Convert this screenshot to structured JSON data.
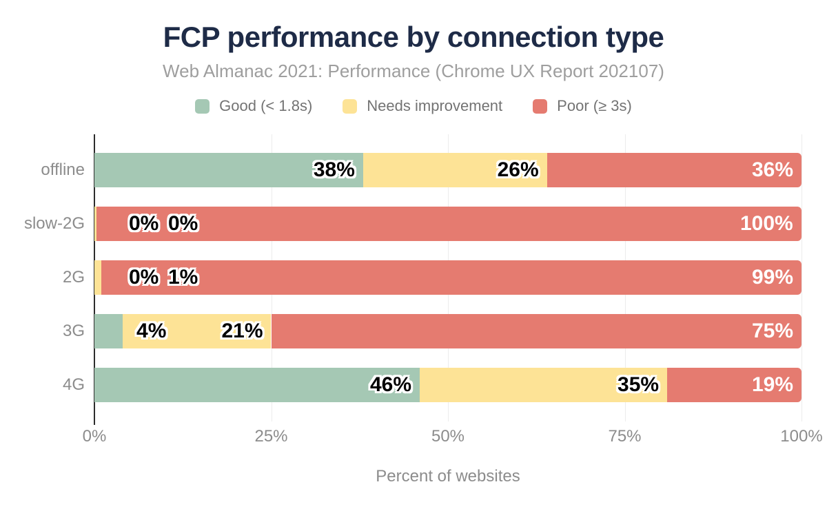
{
  "title": "FCP performance by connection type",
  "subtitle": "Web Almanac 2021: Performance (Chrome UX Report 202107)",
  "colors": {
    "good": "#a5c8b4",
    "needs_improvement": "#fde396",
    "poor": "#e57b70",
    "title_text": "#1e2b47",
    "subtitle_text": "#9e9e9e",
    "legend_text": "#737373",
    "axis_text": "#8c8c8c",
    "gridline": "#ececec",
    "axis_line": "#2d2d2d",
    "label_dark": "#000000",
    "label_light": "#ffffff"
  },
  "legend": [
    {
      "key": "good",
      "label": "Good (< 1.8s)"
    },
    {
      "key": "needs_improvement",
      "label": "Needs improvement"
    },
    {
      "key": "poor",
      "label": "Poor (≥ 3s)"
    }
  ],
  "chart_data": {
    "type": "bar",
    "orientation": "horizontal",
    "stacked": true,
    "title": "FCP performance by connection type",
    "subtitle": "Web Almanac 2021: Performance (Chrome UX Report 202107)",
    "categories": [
      "offline",
      "slow-2G",
      "2G",
      "3G",
      "4G"
    ],
    "series": [
      {
        "name": "Good (< 1.8s)",
        "key": "good",
        "values": [
          38,
          0,
          0,
          4,
          46
        ],
        "labels": [
          "38%",
          "0%",
          "0%",
          "4%",
          "46%"
        ],
        "display_values": [
          38,
          0,
          0,
          4,
          46
        ]
      },
      {
        "name": "Needs improvement",
        "key": "needs_improvement",
        "values": [
          26,
          0,
          1,
          21,
          35
        ],
        "labels": [
          "26%",
          "0%",
          "1%",
          "21%",
          "35%"
        ],
        "display_values": [
          26,
          0.3,
          1,
          21,
          35
        ]
      },
      {
        "name": "Poor (≥ 3s)",
        "key": "poor",
        "values": [
          36,
          100,
          99,
          75,
          19
        ],
        "labels": [
          "36%",
          "100%",
          "99%",
          "75%",
          "19%"
        ],
        "display_values": [
          36,
          99.7,
          99,
          75,
          19
        ]
      }
    ],
    "xlabel": "Percent of websites",
    "x_ticks": [
      "0%",
      "25%",
      "50%",
      "75%",
      "100%"
    ],
    "x_tick_values": [
      0,
      25,
      50,
      75,
      100
    ],
    "xlim": [
      0,
      100
    ],
    "grid": true,
    "legend_position": "top"
  }
}
